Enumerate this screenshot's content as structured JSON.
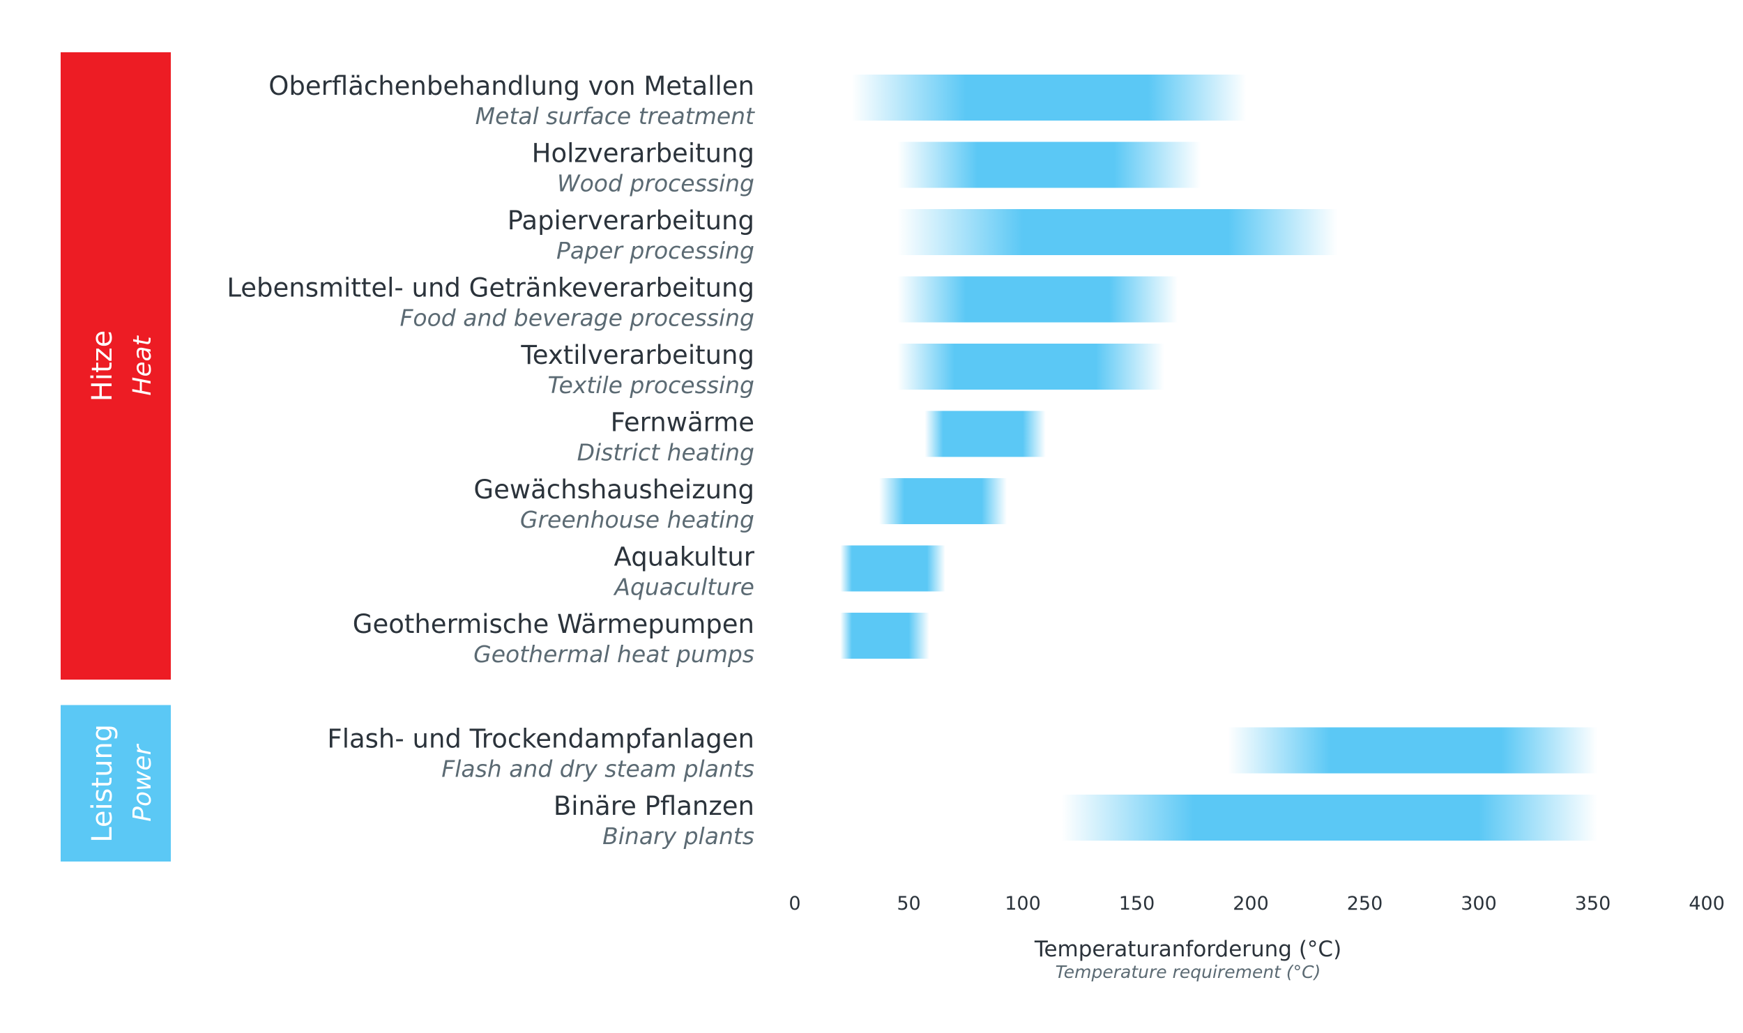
{
  "chart_data": {
    "type": "range-bar",
    "xlabel": "Temperaturanforderung (°C)",
    "xlabel_en": "Temperature requirement  (°C)",
    "xlim": [
      0,
      400
    ],
    "xticks": [
      0,
      50,
      100,
      150,
      200,
      250,
      300,
      350,
      400
    ],
    "bar_color": "#5bc8f5",
    "groups": [
      {
        "label": "Hitze",
        "label_en": "Heat",
        "color": "#ed1c24",
        "items": [
          {
            "label": "Oberflächenbehandlung von Metallen",
            "label_en": "Metal surface treatment",
            "min": 25,
            "max": 198,
            "core_min": 75,
            "core_max": 155
          },
          {
            "label": "Holzverarbeitung",
            "label_en": "Wood processing",
            "min": 45,
            "max": 178,
            "core_min": 80,
            "core_max": 140
          },
          {
            "label": "Papierverarbeitung",
            "label_en": "Paper processing",
            "min": 45,
            "max": 238,
            "core_min": 100,
            "core_max": 190
          },
          {
            "label": "Lebensmittel- und Getränkeverarbeitung",
            "label_en": "Food and beverage processing",
            "min": 45,
            "max": 168,
            "core_min": 75,
            "core_max": 138
          },
          {
            "label": "Textilverarbeitung",
            "label_en": "Textile processing",
            "min": 45,
            "max": 162,
            "core_min": 70,
            "core_max": 132
          },
          {
            "label": "Fernwärme",
            "label_en": "District heating",
            "min": 57,
            "max": 110,
            "core_min": 65,
            "core_max": 100
          },
          {
            "label": "Gewächshausheizung",
            "label_en": "Greenhouse heating",
            "min": 37,
            "max": 93,
            "core_min": 48,
            "core_max": 82
          },
          {
            "label": "Aquakultur",
            "label_en": "Aquaculture",
            "min": 20,
            "max": 66,
            "core_min": 25,
            "core_max": 58
          },
          {
            "label": "Geothermische Wärmepumpen",
            "label_en": "Geothermal heat pumps",
            "min": 20,
            "max": 59,
            "core_min": 25,
            "core_max": 50
          }
        ]
      },
      {
        "label": "Leistung",
        "label_en": "Power",
        "color": "#5bc8f5",
        "items": [
          {
            "label": "Flash- und Trockendampfanlagen",
            "label_en": "Flash and dry steam plants",
            "min": 190,
            "max": 352,
            "core_min": 235,
            "core_max": 310
          },
          {
            "label": "Binäre Pflanzen",
            "label_en": "Binary plants",
            "min": 117,
            "max": 352,
            "core_min": 175,
            "core_max": 300
          }
        ]
      }
    ]
  }
}
